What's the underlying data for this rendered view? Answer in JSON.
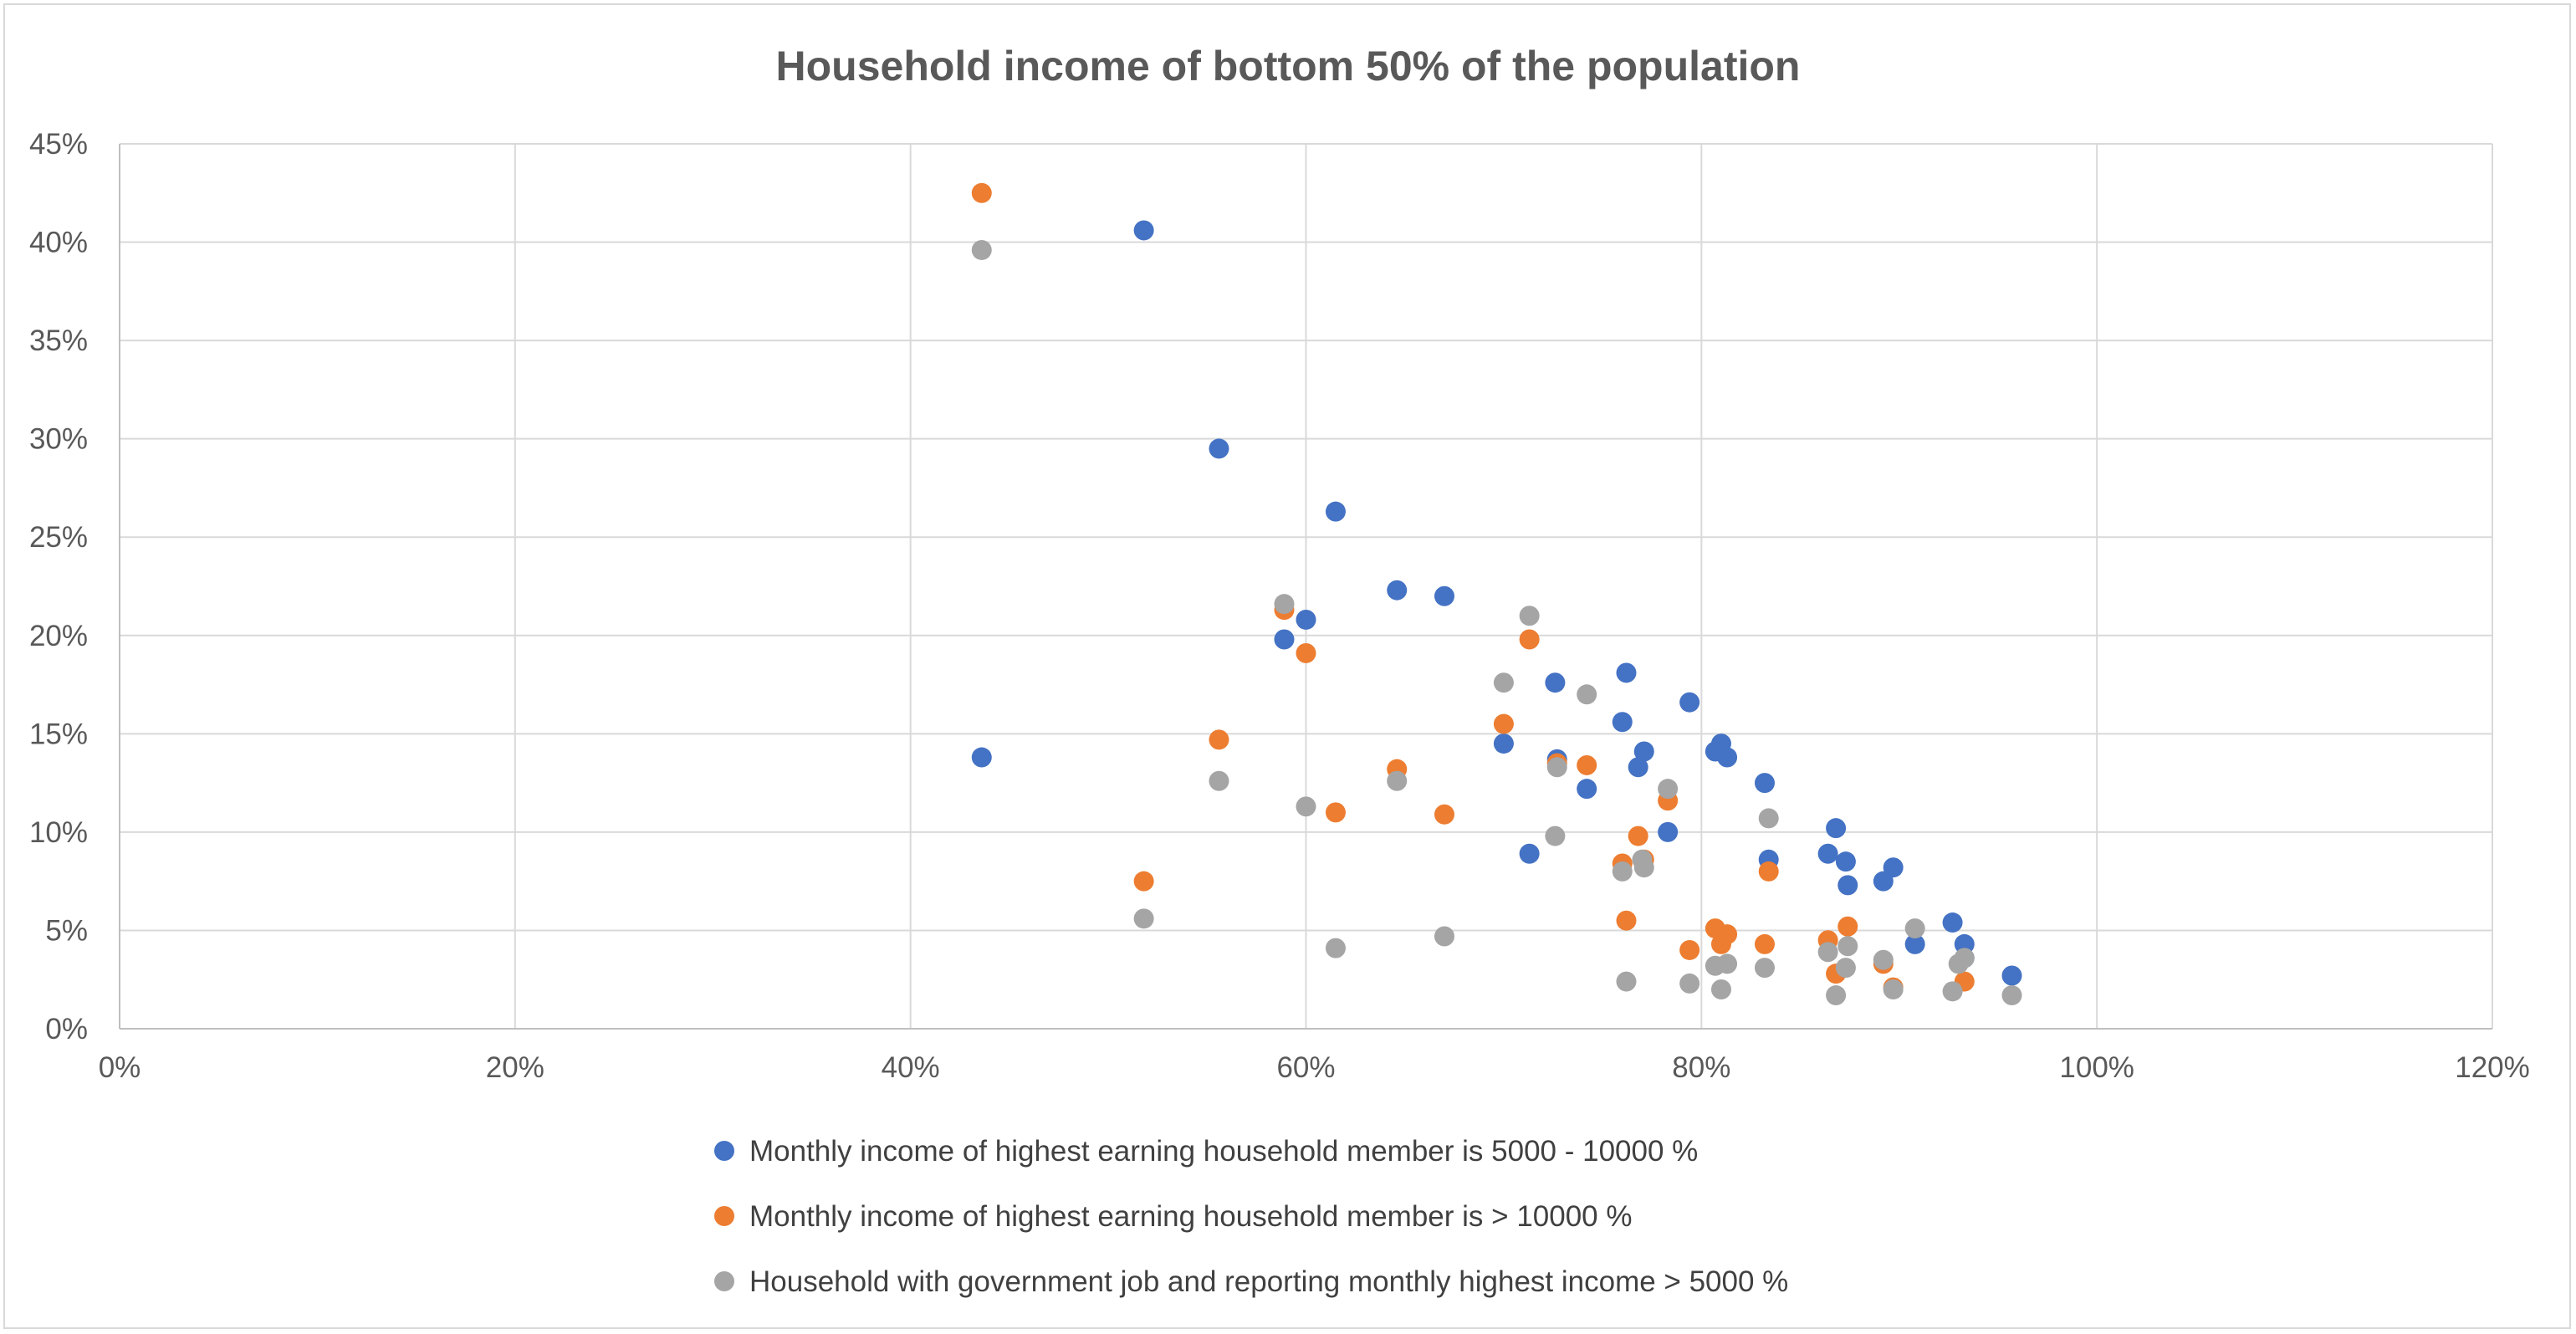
{
  "chart_data": {
    "type": "scatter",
    "title": "Household income of bottom 50% of the population",
    "xlabel": "",
    "ylabel": "",
    "xlim": [
      0,
      120
    ],
    "ylim": [
      0,
      45
    ],
    "x_ticks": [
      "0%",
      "20%",
      "40%",
      "60%",
      "80%",
      "100%",
      "120%"
    ],
    "y_ticks": [
      "0%",
      "5%",
      "10%",
      "15%",
      "20%",
      "25%",
      "30%",
      "35%",
      "40%",
      "45%"
    ],
    "grid": "on",
    "legend_position": "bottom",
    "series": [
      {
        "name": "Monthly income of highest earning household member is 5000 - 10000 %",
        "color": "#4472c4",
        "points": [
          [
            43.6,
            13.8
          ],
          [
            51.8,
            40.6
          ],
          [
            55.6,
            29.5
          ],
          [
            58.9,
            19.8
          ],
          [
            60.0,
            20.8
          ],
          [
            61.5,
            26.3
          ],
          [
            64.6,
            22.3
          ],
          [
            67.0,
            22.0
          ],
          [
            70.0,
            14.5
          ],
          [
            71.3,
            8.9
          ],
          [
            72.6,
            17.6
          ],
          [
            72.7,
            13.7
          ],
          [
            74.2,
            12.2
          ],
          [
            76.0,
            15.6
          ],
          [
            76.2,
            18.1
          ],
          [
            76.8,
            13.3
          ],
          [
            77.1,
            14.1
          ],
          [
            78.3,
            10.0
          ],
          [
            79.4,
            16.6
          ],
          [
            80.7,
            14.1
          ],
          [
            81.0,
            14.5
          ],
          [
            81.3,
            13.8
          ],
          [
            83.2,
            12.5
          ],
          [
            83.4,
            8.6
          ],
          [
            86.4,
            8.9
          ],
          [
            86.8,
            10.2
          ],
          [
            87.3,
            8.5
          ],
          [
            87.4,
            7.3
          ],
          [
            89.2,
            7.5
          ],
          [
            89.7,
            8.2
          ],
          [
            90.8,
            4.3
          ],
          [
            92.7,
            5.4
          ],
          [
            93.3,
            4.3
          ],
          [
            93.3,
            3.6
          ],
          [
            95.7,
            2.7
          ]
        ]
      },
      {
        "name": "Monthly income of highest earning household member is > 10000 %",
        "color": "#ed7d31",
        "points": [
          [
            43.6,
            42.5
          ],
          [
            51.8,
            7.5
          ],
          [
            55.6,
            14.7
          ],
          [
            58.9,
            21.3
          ],
          [
            60.0,
            19.1
          ],
          [
            61.5,
            11.0
          ],
          [
            64.6,
            13.2
          ],
          [
            67.0,
            10.9
          ],
          [
            70.0,
            15.5
          ],
          [
            71.3,
            19.8
          ],
          [
            72.7,
            13.5
          ],
          [
            74.2,
            13.4
          ],
          [
            76.0,
            8.4
          ],
          [
            76.2,
            5.5
          ],
          [
            76.8,
            9.8
          ],
          [
            77.1,
            8.6
          ],
          [
            78.3,
            11.6
          ],
          [
            79.4,
            4.0
          ],
          [
            80.7,
            5.1
          ],
          [
            81.0,
            4.3
          ],
          [
            81.3,
            4.8
          ],
          [
            83.2,
            4.3
          ],
          [
            83.4,
            8.0
          ],
          [
            86.4,
            4.5
          ],
          [
            86.8,
            2.8
          ],
          [
            87.4,
            5.2
          ],
          [
            89.2,
            3.3
          ],
          [
            89.7,
            2.1
          ],
          [
            93.3,
            2.4
          ]
        ]
      },
      {
        "name": "Household with government job and reporting monthly highest income > 5000 %",
        "color": "#a5a5a5",
        "points": [
          [
            43.6,
            39.6
          ],
          [
            51.8,
            5.6
          ],
          [
            55.6,
            12.6
          ],
          [
            58.9,
            21.6
          ],
          [
            60.0,
            11.3
          ],
          [
            61.5,
            4.1
          ],
          [
            64.6,
            12.6
          ],
          [
            67.0,
            4.7
          ],
          [
            70.0,
            17.6
          ],
          [
            71.3,
            21.0
          ],
          [
            72.6,
            9.8
          ],
          [
            72.7,
            13.3
          ],
          [
            74.2,
            17.0
          ],
          [
            76.0,
            8.0
          ],
          [
            76.2,
            2.4
          ],
          [
            77.0,
            8.6
          ],
          [
            77.1,
            8.2
          ],
          [
            78.3,
            12.2
          ],
          [
            79.4,
            2.3
          ],
          [
            80.7,
            3.2
          ],
          [
            81.0,
            2.0
          ],
          [
            81.3,
            3.3
          ],
          [
            83.2,
            3.1
          ],
          [
            83.4,
            10.7
          ],
          [
            86.4,
            3.9
          ],
          [
            86.8,
            1.7
          ],
          [
            87.3,
            3.1
          ],
          [
            87.4,
            4.2
          ],
          [
            89.2,
            3.5
          ],
          [
            89.7,
            2.0
          ],
          [
            90.8,
            5.1
          ],
          [
            92.7,
            1.9
          ],
          [
            93.0,
            3.3
          ],
          [
            93.3,
            3.6
          ],
          [
            95.7,
            1.7
          ]
        ]
      }
    ]
  }
}
